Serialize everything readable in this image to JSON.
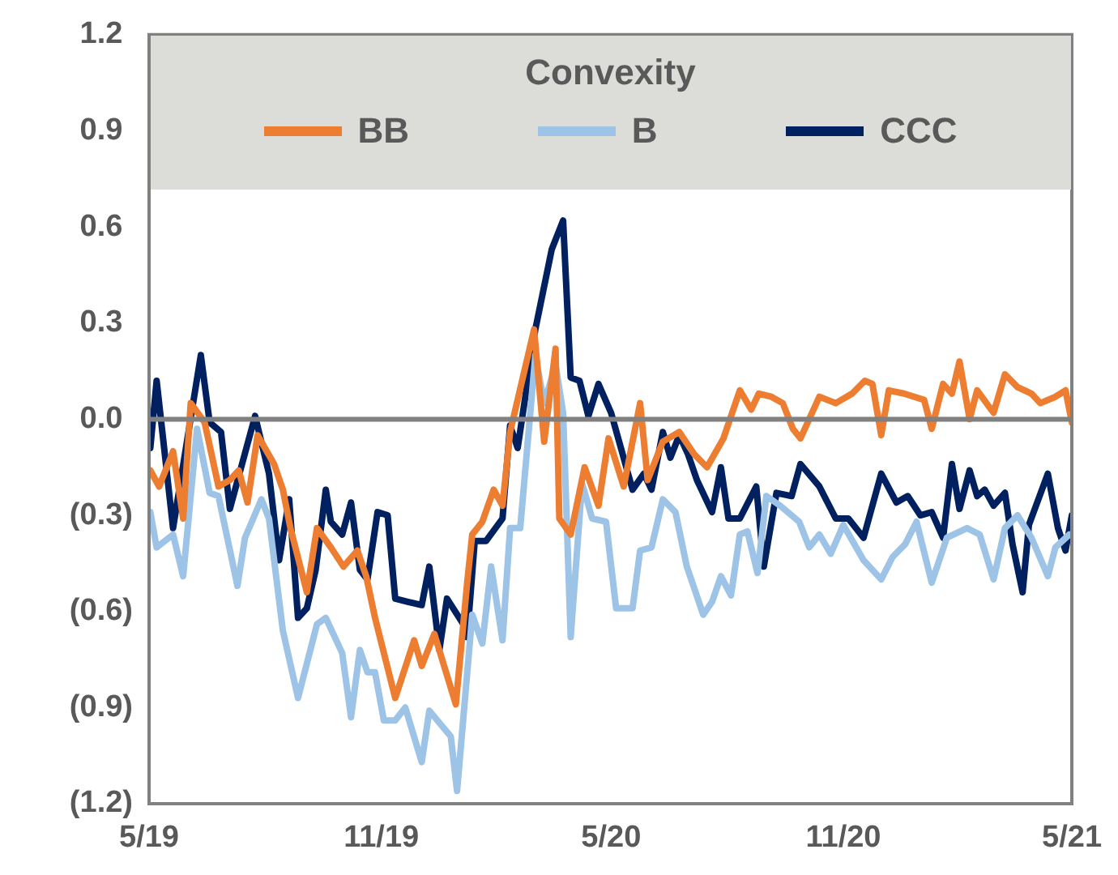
{
  "chart_data": {
    "type": "line",
    "legend_title": "Convexity",
    "legend": "top",
    "grid": false,
    "marker": "none",
    "line_style": "solid",
    "xlim": [
      "2019-05",
      "2021-05"
    ],
    "xticks": [
      {
        "value": "2019-05",
        "label": "5/19"
      },
      {
        "value": "2019-11",
        "label": "11/19"
      },
      {
        "value": "2020-05",
        "label": "5/20"
      },
      {
        "value": "2020-11",
        "label": "11/20"
      },
      {
        "value": "2021-05",
        "label": "5/21"
      }
    ],
    "ylim": [
      -1.2,
      1.2
    ],
    "yticks": [
      {
        "value": -1.2,
        "label": "(1.2)"
      },
      {
        "value": -0.9,
        "label": "(0.9)"
      },
      {
        "value": -0.6,
        "label": "(0.6)"
      },
      {
        "value": -0.3,
        "label": "(0.3)"
      },
      {
        "value": 0,
        "label": "0.0"
      },
      {
        "value": 0.3,
        "label": "0.3"
      },
      {
        "value": 0.6,
        "label": "0.6"
      },
      {
        "value": 0.9,
        "label": "0.9"
      },
      {
        "value": 1.2,
        "label": "1.2"
      }
    ],
    "ref_lines": [
      {
        "axis": "y",
        "value": 0,
        "color": "#808080"
      }
    ],
    "series": [
      {
        "name": "BB",
        "color": "#ed7d31",
        "x": [
          "2019-05-02",
          "2019-05-09",
          "2019-05-20",
          "2019-05-28",
          "2019-06-03",
          "2019-06-14",
          "2019-06-25",
          "2019-07-04",
          "2019-07-11",
          "2019-07-18",
          "2019-07-26",
          "2019-08-08",
          "2019-08-15",
          "2019-08-21",
          "2019-09-03",
          "2019-09-11",
          "2019-09-22",
          "2019-10-02",
          "2019-10-13",
          "2019-10-20",
          "2019-10-27",
          "2019-11-12",
          "2019-11-27",
          "2019-12-03",
          "2019-12-13",
          "2019-12-30",
          "2020-01-08",
          "2020-01-12",
          "2020-01-20",
          "2020-01-29",
          "2020-02-05",
          "2020-02-11",
          "2020-03-01",
          "2020-03-09",
          "2020-03-18",
          "2020-03-21",
          "2020-03-30",
          "2020-04-10",
          "2020-04-21",
          "2020-04-29",
          "2020-05-11",
          "2020-05-24",
          "2020-05-30",
          "2020-06-11",
          "2020-06-24",
          "2020-07-06",
          "2020-07-16",
          "2020-07-29",
          "2020-08-11",
          "2020-08-20",
          "2020-08-26",
          "2020-09-05",
          "2020-09-14",
          "2020-09-22",
          "2020-09-28",
          "2020-10-13",
          "2020-10-26",
          "2020-11-08",
          "2020-11-18",
          "2020-11-24",
          "2020-12-01",
          "2020-12-07",
          "2020-12-19",
          "2021-01-04",
          "2021-01-10",
          "2021-01-19",
          "2021-01-26",
          "2021-02-01",
          "2021-02-09",
          "2021-02-15",
          "2021-02-28",
          "2021-03-09",
          "2021-03-19",
          "2021-03-30",
          "2021-04-06",
          "2021-04-18",
          "2021-04-26",
          "2021-05-01"
        ],
        "values": [
          -0.16,
          -0.21,
          -0.1,
          -0.31,
          0.05,
          -0.01,
          -0.21,
          -0.19,
          -0.16,
          -0.26,
          -0.05,
          -0.14,
          -0.22,
          -0.34,
          -0.54,
          -0.34,
          -0.4,
          -0.46,
          -0.41,
          -0.49,
          -0.62,
          -0.87,
          -0.69,
          -0.77,
          -0.67,
          -0.89,
          -0.51,
          -0.36,
          -0.32,
          -0.22,
          -0.27,
          -0.04,
          0.28,
          -0.07,
          0.22,
          -0.31,
          -0.36,
          -0.15,
          -0.27,
          -0.06,
          -0.21,
          0.05,
          -0.19,
          -0.07,
          -0.04,
          -0.11,
          -0.15,
          -0.06,
          0.09,
          0.03,
          0.08,
          0.07,
          0.05,
          -0.03,
          -0.06,
          0.07,
          0.05,
          0.08,
          0.12,
          0.11,
          -0.05,
          0.09,
          0.08,
          0.06,
          -0.03,
          0.11,
          0.08,
          0.18,
          0.0,
          0.09,
          0.02,
          0.14,
          0.1,
          0.08,
          0.05,
          0.07,
          0.09,
          -0.01
        ]
      },
      {
        "name": "B",
        "color": "#9dc3e6",
        "x": [
          "2019-05-02",
          "2019-05-07",
          "2019-05-20",
          "2019-05-28",
          "2019-06-08",
          "2019-06-18",
          "2019-06-25",
          "2019-07-10",
          "2019-07-16",
          "2019-07-29",
          "2019-08-04",
          "2019-08-15",
          "2019-08-27",
          "2019-09-11",
          "2019-09-18",
          "2019-10-01",
          "2019-10-08",
          "2019-10-15",
          "2019-10-21",
          "2019-10-27",
          "2019-11-03",
          "2019-11-12",
          "2019-11-20",
          "2019-12-03",
          "2019-12-09",
          "2019-12-26",
          "2019-12-31",
          "2020-01-12",
          "2020-01-20",
          "2020-01-27",
          "2020-02-05",
          "2020-02-11",
          "2020-02-19",
          "2020-03-02",
          "2020-03-09",
          "2020-03-18",
          "2020-03-24",
          "2020-03-30",
          "2020-04-08",
          "2020-04-16",
          "2020-04-27",
          "2020-05-05",
          "2020-05-18",
          "2020-05-24",
          "2020-06-02",
          "2020-06-11",
          "2020-06-21",
          "2020-06-30",
          "2020-07-13",
          "2020-07-20",
          "2020-07-27",
          "2020-08-04",
          "2020-08-11",
          "2020-08-17",
          "2020-08-25",
          "2020-09-01",
          "2020-09-12",
          "2020-09-27",
          "2020-10-05",
          "2020-10-13",
          "2020-10-22",
          "2020-11-01",
          "2020-11-17",
          "2020-12-01",
          "2020-12-10",
          "2020-12-20",
          "2020-12-29",
          "2021-01-10",
          "2021-01-22",
          "2021-02-07",
          "2021-02-17",
          "2021-02-28",
          "2021-03-09",
          "2021-03-19",
          "2021-03-30",
          "2021-04-12",
          "2021-04-18",
          "2021-04-29"
        ],
        "values": [
          -0.29,
          -0.4,
          -0.36,
          -0.49,
          -0.03,
          -0.23,
          -0.24,
          -0.52,
          -0.37,
          -0.25,
          -0.31,
          -0.66,
          -0.87,
          -0.64,
          -0.62,
          -0.73,
          -0.93,
          -0.72,
          -0.79,
          -0.79,
          -0.94,
          -0.94,
          -0.9,
          -1.07,
          -0.91,
          -0.99,
          -1.16,
          -0.61,
          -0.7,
          -0.46,
          -0.69,
          -0.34,
          -0.34,
          0.2,
          0.05,
          0.17,
          0.02,
          -0.68,
          -0.2,
          -0.31,
          -0.32,
          -0.59,
          -0.59,
          -0.41,
          -0.4,
          -0.25,
          -0.29,
          -0.46,
          -0.61,
          -0.57,
          -0.49,
          -0.55,
          -0.36,
          -0.35,
          -0.48,
          -0.24,
          -0.27,
          -0.32,
          -0.4,
          -0.36,
          -0.42,
          -0.33,
          -0.44,
          -0.5,
          -0.43,
          -0.39,
          -0.32,
          -0.51,
          -0.37,
          -0.34,
          -0.36,
          -0.5,
          -0.34,
          -0.3,
          -0.37,
          -0.49,
          -0.4,
          -0.36
        ]
      },
      {
        "name": "CCC",
        "color": "#002060",
        "x": [
          "2019-05-02",
          "2019-05-07",
          "2019-05-20",
          "2019-06-11",
          "2019-06-18",
          "2019-06-27",
          "2019-07-04",
          "2019-07-24",
          "2019-08-04",
          "2019-08-12",
          "2019-08-20",
          "2019-08-27",
          "2019-09-03",
          "2019-09-10",
          "2019-09-18",
          "2019-09-22",
          "2019-10-01",
          "2019-10-08",
          "2019-10-15",
          "2019-10-21",
          "2019-10-29",
          "2019-11-06",
          "2019-11-12",
          "2019-11-22",
          "2019-12-03",
          "2019-12-09",
          "2019-12-17",
          "2019-12-23",
          "2020-01-05",
          "2020-01-08",
          "2020-01-14",
          "2020-01-23",
          "2020-02-05",
          "2020-02-11",
          "2020-02-17",
          "2020-03-02",
          "2020-03-15",
          "2020-03-24",
          "2020-03-30",
          "2020-04-06",
          "2020-04-13",
          "2020-04-21",
          "2020-05-01",
          "2020-05-18",
          "2020-05-27",
          "2020-06-02",
          "2020-06-11",
          "2020-06-17",
          "2020-06-24",
          "2020-07-01",
          "2020-07-08",
          "2020-07-20",
          "2020-07-27",
          "2020-08-02",
          "2020-08-11",
          "2020-08-24",
          "2020-08-30",
          "2020-09-09",
          "2020-09-21",
          "2020-09-28",
          "2020-10-13",
          "2020-10-26",
          "2020-11-05",
          "2020-11-17",
          "2020-12-01",
          "2020-12-13",
          "2020-12-22",
          "2021-01-01",
          "2021-01-10",
          "2021-01-19",
          "2021-01-26",
          "2021-02-01",
          "2021-02-09",
          "2021-02-15",
          "2021-02-21",
          "2021-02-28",
          "2021-03-09",
          "2021-03-15",
          "2021-03-23",
          "2021-03-28",
          "2021-04-12",
          "2021-04-20",
          "2021-04-26",
          "2021-05-01"
        ],
        "values": [
          -0.09,
          0.12,
          -0.34,
          0.2,
          -0.01,
          -0.04,
          -0.28,
          0.01,
          -0.17,
          -0.44,
          -0.25,
          -0.62,
          -0.59,
          -0.47,
          -0.22,
          -0.32,
          -0.36,
          -0.26,
          -0.47,
          -0.5,
          -0.29,
          -0.3,
          -0.56,
          -0.57,
          -0.58,
          -0.46,
          -0.72,
          -0.56,
          -0.64,
          -0.68,
          -0.38,
          -0.38,
          -0.31,
          -0.02,
          -0.09,
          0.28,
          0.53,
          0.62,
          0.13,
          0.12,
          0.01,
          0.11,
          0.02,
          -0.22,
          -0.17,
          -0.22,
          -0.04,
          -0.12,
          -0.05,
          -0.11,
          -0.19,
          -0.29,
          -0.15,
          -0.31,
          -0.31,
          -0.21,
          -0.46,
          -0.23,
          -0.24,
          -0.14,
          -0.21,
          -0.31,
          -0.31,
          -0.37,
          -0.17,
          -0.26,
          -0.24,
          -0.3,
          -0.29,
          -0.37,
          -0.14,
          -0.28,
          -0.16,
          -0.24,
          -0.22,
          -0.27,
          -0.23,
          -0.39,
          -0.54,
          -0.33,
          -0.17,
          -0.34,
          -0.41,
          -0.3
        ]
      }
    ]
  }
}
